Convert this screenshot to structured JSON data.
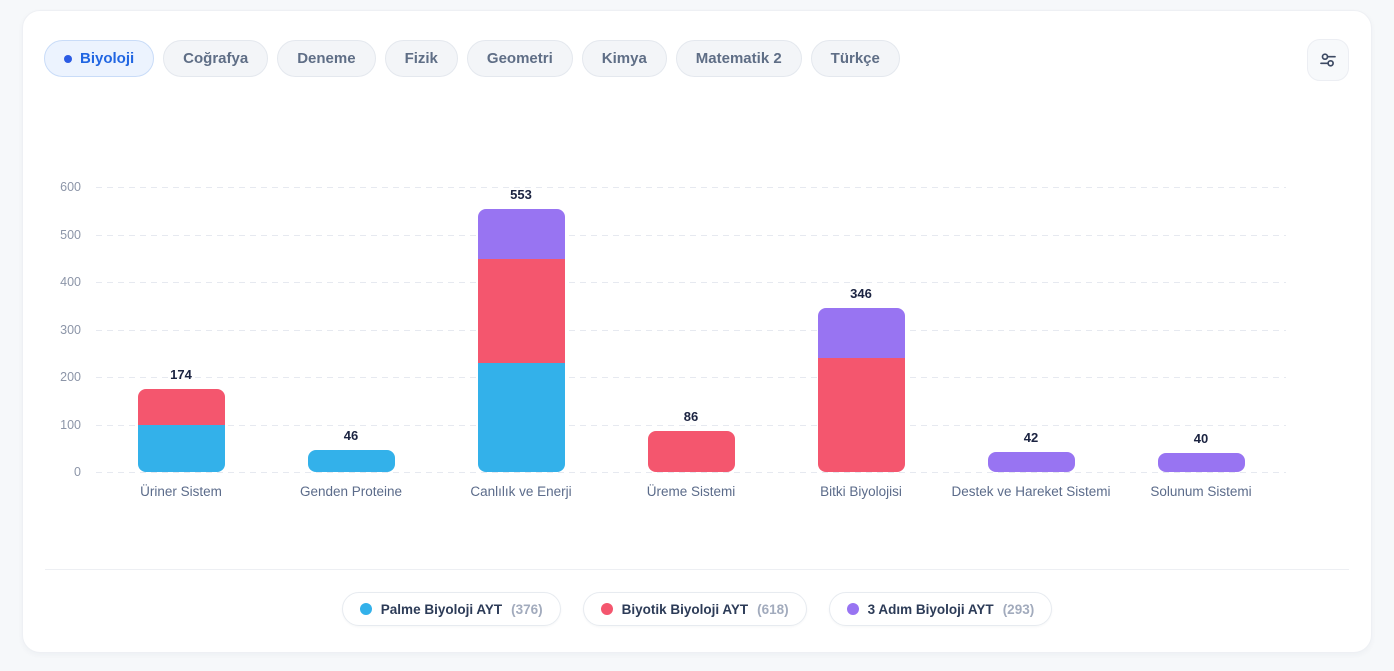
{
  "tabs": {
    "items": [
      {
        "label": "Biyoloji",
        "active": true
      },
      {
        "label": "Coğrafya",
        "active": false
      },
      {
        "label": "Deneme",
        "active": false
      },
      {
        "label": "Fizik",
        "active": false
      },
      {
        "label": "Geometri",
        "active": false
      },
      {
        "label": "Kimya",
        "active": false
      },
      {
        "label": "Matematik 2",
        "active": false
      },
      {
        "label": "Türkçe",
        "active": false
      }
    ],
    "active_color": "#2166e2"
  },
  "toolbar": {
    "filter_icon": "sliders-icon",
    "icon_color": "#3d4a63"
  },
  "chart_data": {
    "type": "bar",
    "stacked": true,
    "categories": [
      "Üriner Sistem",
      "Genden Proteine",
      "Canlılık ve Enerji",
      "Üreme Sistemi",
      "Bitki Biyolojisi",
      "Destek ve Hareket Sistemi",
      "Solunum Sistemi"
    ],
    "series": [
      {
        "name": "Palme Biyoloji AYT",
        "total": 376,
        "color": "#33b1ea",
        "values": [
          100,
          46,
          230,
          0,
          0,
          0,
          0
        ]
      },
      {
        "name": "Biyotik Biyoloji AYT",
        "total": 618,
        "color": "#f4566e",
        "values": [
          74,
          0,
          218,
          86,
          240,
          0,
          0
        ]
      },
      {
        "name": "3 Adım Biyoloji AYT",
        "total": 293,
        "color": "#9874f2",
        "values": [
          0,
          0,
          105,
          0,
          106,
          42,
          40
        ]
      }
    ],
    "bar_totals": [
      174,
      46,
      553,
      86,
      346,
      42,
      40
    ],
    "ylim": [
      0,
      600
    ],
    "yticks": [
      0,
      100,
      200,
      300,
      400,
      500,
      600
    ],
    "grid": "horizontal-dashed",
    "legend_position": "bottom"
  },
  "legend": {
    "items": [
      {
        "label": "Palme Biyoloji AYT",
        "count": "(376)",
        "color": "#33b1ea"
      },
      {
        "label": "Biyotik Biyoloji AYT",
        "count": "(618)",
        "color": "#f4566e"
      },
      {
        "label": "3 Adım Biyoloji AYT",
        "count": "(293)",
        "color": "#9874f2"
      }
    ]
  }
}
